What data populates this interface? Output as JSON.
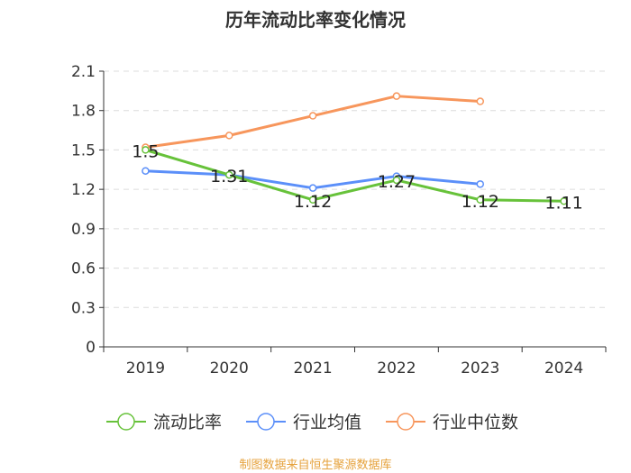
{
  "chart_data": {
    "type": "line",
    "title": "历年流动比率变化情况",
    "categories": [
      "2019",
      "2020",
      "2021",
      "2022",
      "2023",
      "2024"
    ],
    "ylim": [
      0,
      2.1
    ],
    "yticks": [
      "0",
      "0.3",
      "0.6",
      "0.9",
      "1.2",
      "1.5",
      "1.8",
      "2.1"
    ],
    "grid": true,
    "legend_position": "bottom",
    "series": [
      {
        "name": "流动比率",
        "color": "#67c23a",
        "values": [
          1.5,
          1.31,
          1.12,
          1.27,
          1.12,
          1.11
        ],
        "labels": [
          "1.5",
          "1.31",
          "1.12",
          "1.27",
          "1.12",
          "1.11"
        ]
      },
      {
        "name": "行业均值",
        "color": "#5b8ff9",
        "values": [
          1.34,
          1.31,
          1.21,
          1.3,
          1.24,
          null
        ]
      },
      {
        "name": "行业中位数",
        "color": "#f7965c",
        "values": [
          1.52,
          1.61,
          1.76,
          1.91,
          1.87,
          null
        ]
      }
    ]
  },
  "source": "制图数据来自恒生聚源数据库"
}
